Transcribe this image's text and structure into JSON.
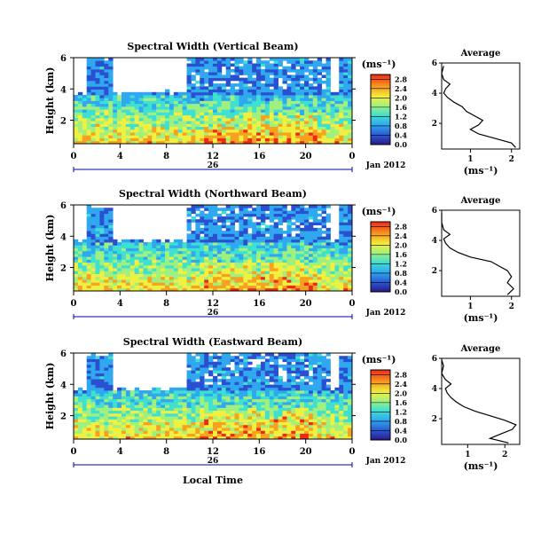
{
  "chart_data": [
    {
      "type": "heatmap",
      "title": "Spectral Width (Vertical Beam)",
      "ylabel": "Height (km)",
      "xlabel": "",
      "x_ticks": [
        "0",
        "4",
        "8",
        "12",
        "16",
        "20",
        "0"
      ],
      "x_range": [
        0,
        24
      ],
      "y_ticks": [
        "2",
        "4",
        "6"
      ],
      "y_range": [
        0.5,
        6
      ],
      "day_label": "26",
      "date_label": "Jan 2012",
      "colorbar": {
        "unit": "(ms⁻¹)",
        "ticks": [
          "0.0",
          "0.4",
          "0.8",
          "1.2",
          "1.6",
          "2.0",
          "2.4",
          "2.8"
        ],
        "range": [
          0,
          3
        ]
      },
      "profile": {
        "title": "Average",
        "xlabel": "(ms⁻¹)",
        "x_ticks": [
          "1",
          "2"
        ],
        "x_range": [
          0.3,
          2.2
        ],
        "y_ticks": [
          "2",
          "4",
          "6"
        ],
        "y_range": [
          0.3,
          6
        ],
        "points": [
          [
            2.1,
            0.4
          ],
          [
            2.0,
            0.7
          ],
          [
            1.6,
            1.0
          ],
          [
            1.2,
            1.3
          ],
          [
            1.0,
            1.6
          ],
          [
            1.2,
            1.9
          ],
          [
            1.3,
            2.2
          ],
          [
            1.1,
            2.5
          ],
          [
            0.9,
            2.8
          ],
          [
            0.8,
            3.1
          ],
          [
            0.6,
            3.4
          ],
          [
            0.45,
            3.7
          ],
          [
            0.35,
            4.0
          ],
          [
            0.4,
            4.3
          ],
          [
            0.5,
            4.6
          ],
          [
            0.35,
            4.9
          ],
          [
            0.3,
            5.3
          ],
          [
            0.35,
            5.8
          ]
        ]
      }
    },
    {
      "type": "heatmap",
      "title": "Spectral Width (Northward Beam)",
      "ylabel": "Height (km)",
      "xlabel": "",
      "x_ticks": [
        "0",
        "4",
        "8",
        "12",
        "16",
        "20",
        "0"
      ],
      "x_range": [
        0,
        24
      ],
      "y_ticks": [
        "2",
        "4",
        "6"
      ],
      "y_range": [
        0.5,
        6
      ],
      "day_label": "26",
      "date_label": "Jan 2012",
      "colorbar": {
        "unit": "(ms⁻¹)",
        "ticks": [
          "0.0",
          "0.4",
          "0.8",
          "1.2",
          "1.6",
          "2.0",
          "2.4",
          "2.8"
        ],
        "range": [
          0,
          3
        ]
      },
      "profile": {
        "title": "Average",
        "xlabel": "(ms⁻¹)",
        "x_ticks": [
          "1",
          "2"
        ],
        "x_range": [
          0.3,
          2.2
        ],
        "y_ticks": [
          "2",
          "4",
          "6"
        ],
        "y_range": [
          0.3,
          6
        ],
        "points": [
          [
            1.9,
            0.4
          ],
          [
            2.05,
            0.8
          ],
          [
            1.9,
            1.2
          ],
          [
            2.0,
            1.6
          ],
          [
            1.9,
            2.0
          ],
          [
            1.7,
            2.3
          ],
          [
            1.5,
            2.6
          ],
          [
            1.0,
            2.9
          ],
          [
            0.7,
            3.2
          ],
          [
            0.5,
            3.5
          ],
          [
            0.4,
            3.8
          ],
          [
            0.35,
            4.1
          ],
          [
            0.5,
            4.4
          ],
          [
            0.35,
            4.7
          ],
          [
            0.3,
            5.2
          ],
          [
            0.3,
            5.8
          ]
        ]
      }
    },
    {
      "type": "heatmap",
      "title": "Spectral Width (Eastward Beam)",
      "ylabel": "Height (km)",
      "xlabel": "Local Time",
      "x_ticks": [
        "0",
        "4",
        "8",
        "12",
        "16",
        "20",
        "0"
      ],
      "x_range": [
        0,
        24
      ],
      "y_ticks": [
        "2",
        "4",
        "6"
      ],
      "y_range": [
        0.5,
        6
      ],
      "day_label": "26",
      "date_label": "Jan 2012",
      "colorbar": {
        "unit": "(ms⁻¹)",
        "ticks": [
          "0.0",
          "0.4",
          "0.8",
          "1.2",
          "1.6",
          "2.0",
          "2.4",
          "2.8"
        ],
        "range": [
          0,
          3
        ]
      },
      "profile": {
        "title": "Average",
        "xlabel": "(ms⁻¹)",
        "x_ticks": [
          "1",
          "2"
        ],
        "x_range": [
          0.3,
          2.4
        ],
        "y_ticks": [
          "2",
          "4",
          "6"
        ],
        "y_range": [
          0.3,
          6
        ],
        "points": [
          [
            2.1,
            0.4
          ],
          [
            1.6,
            0.7
          ],
          [
            1.9,
            1.0
          ],
          [
            2.2,
            1.3
          ],
          [
            2.3,
            1.6
          ],
          [
            2.0,
            1.9
          ],
          [
            1.6,
            2.2
          ],
          [
            1.2,
            2.5
          ],
          [
            0.9,
            2.8
          ],
          [
            0.7,
            3.1
          ],
          [
            0.55,
            3.4
          ],
          [
            0.45,
            3.7
          ],
          [
            0.4,
            4.0
          ],
          [
            0.55,
            4.3
          ],
          [
            0.4,
            4.6
          ],
          [
            0.3,
            5.0
          ],
          [
            0.35,
            5.5
          ],
          [
            0.3,
            5.9
          ]
        ]
      }
    }
  ]
}
